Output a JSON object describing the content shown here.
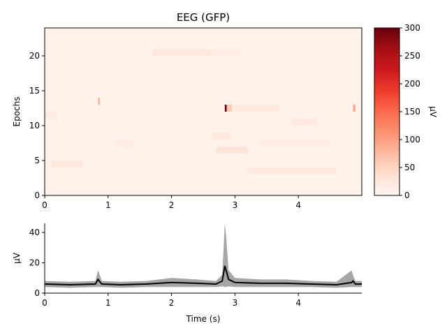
{
  "chart_data": [
    {
      "type": "heatmap",
      "title": "EEG (GFP)",
      "xlabel": "",
      "ylabel": "Epochs",
      "xlim": [
        0,
        5
      ],
      "ylim": [
        0,
        24
      ],
      "xticks": [
        "0",
        "1",
        "2",
        "3",
        "4"
      ],
      "yticks": [
        "0",
        "5",
        "10",
        "15",
        "20"
      ],
      "colorbar": {
        "label": "µV",
        "range": [
          0,
          300
        ],
        "ticks": [
          "0",
          "50",
          "100",
          "150",
          "200",
          "250",
          "300"
        ],
        "colormap": "Reds"
      },
      "baseline_value": 6,
      "hotspots": [
        {
          "epoch": 12,
          "t0": 2.84,
          "t1": 2.87,
          "value": 300
        },
        {
          "epoch": 12,
          "t0": 2.87,
          "t1": 2.95,
          "value": 60
        },
        {
          "epoch": 12,
          "t0": 2.95,
          "t1": 3.7,
          "value": 22
        },
        {
          "epoch": 12,
          "t0": 4.86,
          "t1": 4.9,
          "value": 90
        },
        {
          "epoch": 13,
          "t0": 0.84,
          "t1": 0.87,
          "value": 80
        },
        {
          "epoch": 20,
          "t0": 1.7,
          "t1": 2.6,
          "value": 25
        },
        {
          "epoch": 20,
          "t0": 2.6,
          "t1": 3.1,
          "value": 14
        },
        {
          "epoch": 8,
          "t0": 2.65,
          "t1": 2.95,
          "value": 22
        },
        {
          "epoch": 6,
          "t0": 2.7,
          "t1": 3.2,
          "value": 30
        },
        {
          "epoch": 4,
          "t0": 0.1,
          "t1": 0.6,
          "value": 25
        },
        {
          "epoch": 3,
          "t0": 3.2,
          "t1": 4.6,
          "value": 20
        },
        {
          "epoch": 10,
          "t0": 3.9,
          "t1": 4.3,
          "value": 22
        },
        {
          "epoch": 11,
          "t0": 0.0,
          "t1": 0.2,
          "value": 18
        },
        {
          "epoch": 7,
          "t0": 1.1,
          "t1": 1.4,
          "value": 18
        },
        {
          "epoch": 7,
          "t0": 3.4,
          "t1": 4.5,
          "value": 14
        }
      ]
    },
    {
      "type": "line",
      "title": "",
      "xlabel": "Time (s)",
      "ylabel": "µV",
      "xlim": [
        0,
        5
      ],
      "ylim": [
        0,
        46
      ],
      "xticks": [
        "0",
        "1",
        "2",
        "3",
        "4"
      ],
      "yticks": [
        "0",
        "20",
        "40"
      ],
      "series": [
        {
          "x": [
            0,
            0.4,
            0.8,
            0.84,
            0.86,
            0.9,
            1.2,
            1.6,
            2.0,
            2.4,
            2.7,
            2.8,
            2.84,
            2.86,
            2.9,
            3.0,
            3.4,
            3.8,
            4.2,
            4.6,
            4.84,
            4.86,
            4.9,
            5.0
          ],
          "mean": [
            6,
            5.5,
            6,
            9,
            8,
            6,
            5.5,
            6,
            7,
            6.5,
            6,
            8,
            18,
            15,
            9,
            7,
            6.5,
            6.5,
            6,
            5.5,
            7,
            8,
            6,
            6
          ],
          "upper": [
            8,
            7.5,
            8,
            15,
            13,
            8,
            7.5,
            8,
            10,
            9,
            8,
            12,
            46,
            38,
            15,
            10,
            9,
            9,
            8,
            7.5,
            15,
            12,
            8,
            8
          ],
          "lower": [
            4,
            3.5,
            4,
            4,
            4,
            4,
            3.5,
            4,
            4,
            4,
            4,
            4.5,
            4,
            4,
            4.5,
            4,
            4,
            4,
            4,
            3.5,
            4,
            4,
            4,
            4
          ]
        }
      ]
    }
  ]
}
